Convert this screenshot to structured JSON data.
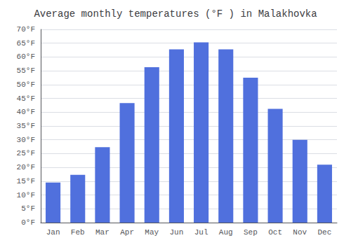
{
  "chart_data": {
    "type": "bar",
    "title": "Average monthly temperatures (°F ) in Malakhovka",
    "categories": [
      "Jan",
      "Feb",
      "Mar",
      "Apr",
      "May",
      "Jun",
      "Jul",
      "Aug",
      "Sep",
      "Oct",
      "Nov",
      "Dec"
    ],
    "values": [
      14.5,
      17.3,
      27.3,
      43.3,
      56.3,
      62.8,
      65.3,
      62.8,
      52.5,
      41.2,
      30.0,
      21.0
    ],
    "ylim": [
      0,
      70
    ],
    "yticks": [
      {
        "value": 0,
        "label": "0°F"
      },
      {
        "value": 5,
        "label": "5°F"
      },
      {
        "value": 10,
        "label": "10°F"
      },
      {
        "value": 15,
        "label": "15°F"
      },
      {
        "value": 20,
        "label": "20°F"
      },
      {
        "value": 25,
        "label": "25°F"
      },
      {
        "value": 30,
        "label": "30°F"
      },
      {
        "value": 35,
        "label": "35°F"
      },
      {
        "value": 40,
        "label": "40°F"
      },
      {
        "value": 45,
        "label": "45°F"
      },
      {
        "value": 50,
        "label": "50°F"
      },
      {
        "value": 55,
        "label": "55°F"
      },
      {
        "value": 60,
        "label": "60°F"
      },
      {
        "value": 65,
        "label": "65°F"
      },
      {
        "value": 70,
        "label": "70°F"
      }
    ],
    "grid": true
  }
}
